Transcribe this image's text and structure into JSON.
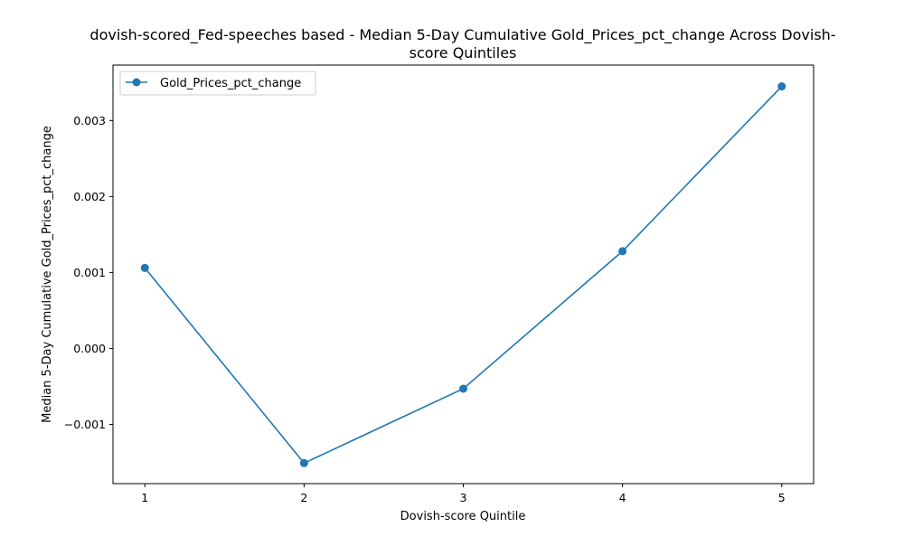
{
  "chart_data": {
    "type": "line",
    "title_line1": "dovish-scored_Fed-speeches based - Median 5-Day Cumulative Gold_Prices_pct_change Across Dovish-",
    "title_line2": "score Quintiles",
    "xlabel": "Dovish-score Quintile",
    "ylabel": "Median 5-Day Cumulative Gold_Prices_pct_change",
    "x": [
      1,
      2,
      3,
      4,
      5
    ],
    "xticks": [
      "1",
      "2",
      "3",
      "4",
      "5"
    ],
    "yticks": [
      -0.001,
      0.0,
      0.001,
      0.002,
      0.003
    ],
    "ytick_labels": [
      "−0.001",
      "0.000",
      "0.001",
      "0.002",
      "0.003"
    ],
    "xlim": [
      0.8,
      5.2
    ],
    "ylim": [
      -0.00178,
      0.00373
    ],
    "grid": false,
    "legend_position": "upper-left",
    "series": [
      {
        "name": "Gold_Prices_pct_change",
        "color": "#1f77b4",
        "marker": "circle",
        "values": [
          0.00106,
          -0.00151,
          -0.00053,
          0.00128,
          0.00345
        ]
      }
    ]
  }
}
